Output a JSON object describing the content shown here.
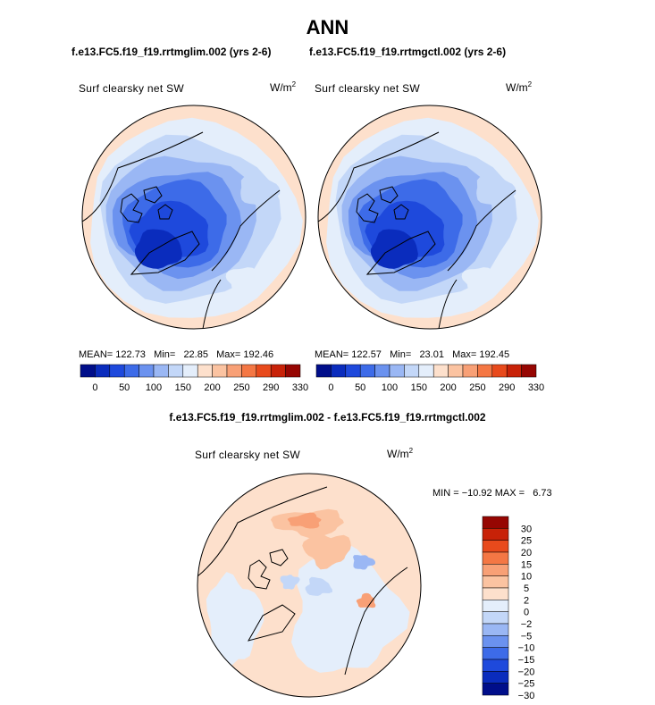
{
  "header": {
    "title": "ANN"
  },
  "colors": {
    "abs_scale": [
      "#000e8a",
      "#0a2cbd",
      "#1e49dc",
      "#3d6be8",
      "#6b92ef",
      "#9ab7f4",
      "#c3d7f8",
      "#e4eefb",
      "#fde0cc",
      "#fbc3a1",
      "#f8a076",
      "#f47744",
      "#e84a1c",
      "#c82208",
      "#960602"
    ],
    "diff_scale": [
      "#000e8a",
      "#0a2cbd",
      "#1e49dc",
      "#3d6be8",
      "#6b92ef",
      "#9ab7f4",
      "#c3d7f8",
      "#e4eefb",
      "#fde0cc",
      "#fbc3a1",
      "#f8a076",
      "#f47744",
      "#e84a1c",
      "#c82208",
      "#960602"
    ],
    "land_outline": "#000000"
  },
  "chart_data": [
    {
      "type": "heatmap",
      "title": "f.e13.FC5.f19_f19.rrtmglim.002 (yrs 2-6)",
      "variable": "Surf clearsky net SW",
      "units": "W/m^2",
      "projection": "north polar stereographic",
      "stats": {
        "mean_label": "MEAN=",
        "mean": "122.73",
        "min_label": "Min=",
        "min": "22.85",
        "max_label": "Max=",
        "max": "192.46"
      },
      "colorbar_ticks": [
        "0",
        "50",
        "100",
        "150",
        "200",
        "250",
        "290",
        "330"
      ],
      "colorbar_levels": 15
    },
    {
      "type": "heatmap",
      "title": "f.e13.FC5.f19_f19.rrtmgctl.002 (yrs 2-6)",
      "variable": "Surf clearsky net SW",
      "units": "W/m^2",
      "projection": "north polar stereographic",
      "stats": {
        "mean_label": "MEAN=",
        "mean": "122.57",
        "min_label": "Min=",
        "min": "23.01",
        "max_label": "Max=",
        "max": "192.45"
      },
      "colorbar_ticks": [
        "0",
        "50",
        "100",
        "150",
        "200",
        "250",
        "290",
        "330"
      ],
      "colorbar_levels": 15
    },
    {
      "type": "heatmap",
      "title": "f.e13.FC5.f19_f19.rrtmglim.002 - f.e13.FC5.f19_f19.rrtmgctl.002",
      "variable": "Surf clearsky net SW",
      "units": "W/m^2",
      "projection": "north polar stereographic",
      "stats": {
        "min_label": "MIN =",
        "min": "−10.92",
        "max_label": "MAX =",
        "max": "6.73"
      },
      "colorbar_ticks": [
        "30",
        "25",
        "20",
        "15",
        "10",
        "5",
        "2",
        "0",
        "−2",
        "−5",
        "−10",
        "−15",
        "−20",
        "−25",
        "−30"
      ],
      "colorbar_levels": 15
    }
  ]
}
